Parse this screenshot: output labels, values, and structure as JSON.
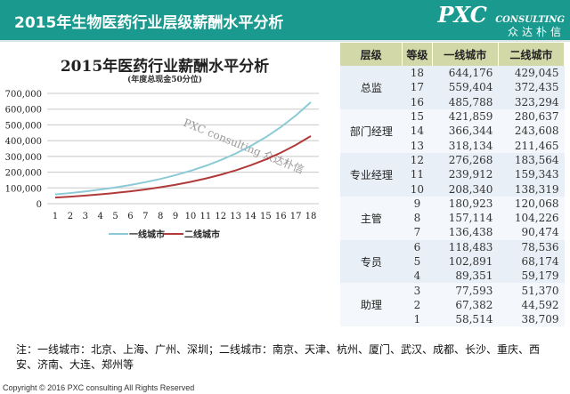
{
  "header": {
    "title": "2015年生物医药行业层级薪酬水平分析",
    "logo_main": "PXC",
    "logo_sub": "CONSULTING",
    "logo_cn": "众达朴信"
  },
  "chart_data": {
    "type": "line",
    "title": "2015年医药行业薪酬水平分析",
    "subtitle": "(年度总现金50分位)",
    "x": [
      1,
      2,
      3,
      4,
      5,
      6,
      7,
      8,
      9,
      10,
      11,
      12,
      13,
      14,
      15,
      16,
      17,
      18
    ],
    "ylim": [
      0,
      700000
    ],
    "yticks": [
      "0",
      "100,000",
      "200,000",
      "300,000",
      "400,000",
      "500,000",
      "600,000",
      "700,000"
    ],
    "grid": true,
    "legend": "bottom",
    "watermark": "PXC consulting 众达朴信",
    "series": [
      {
        "name": "一线城市",
        "color": "#8ccbd6",
        "values": [
          58514,
          67382,
          77593,
          89351,
          102891,
          118483,
          136438,
          157114,
          180923,
          208340,
          239912,
          276268,
          318134,
          366344,
          421859,
          485788,
          559404,
          644176
        ]
      },
      {
        "name": "二线城市",
        "color": "#b03a3a",
        "values": [
          38709,
          44592,
          51370,
          59179,
          68174,
          78536,
          90474,
          104226,
          120068,
          138319,
          159343,
          183564,
          211465,
          243608,
          280637,
          323294,
          372435,
          429045
        ]
      }
    ]
  },
  "table": {
    "headers": [
      "层级",
      "等级",
      "一线城市",
      "二线城市"
    ],
    "groups": [
      {
        "level": "总监",
        "rows": [
          [
            "18",
            "644,176",
            "429,045"
          ],
          [
            "17",
            "559,404",
            "372,435"
          ],
          [
            "16",
            "485,788",
            "323,294"
          ]
        ]
      },
      {
        "level": "部门经理",
        "rows": [
          [
            "15",
            "421,859",
            "280,637"
          ],
          [
            "14",
            "366,344",
            "243,608"
          ],
          [
            "13",
            "318,134",
            "211,465"
          ]
        ]
      },
      {
        "level": "专业经理",
        "rows": [
          [
            "12",
            "276,268",
            "183,564"
          ],
          [
            "11",
            "239,912",
            "159,343"
          ],
          [
            "10",
            "208,340",
            "138,319"
          ]
        ]
      },
      {
        "level": "主管",
        "rows": [
          [
            "9",
            "180,923",
            "120,068"
          ],
          [
            "8",
            "157,114",
            "104,226"
          ],
          [
            "7",
            "136,438",
            "90,474"
          ]
        ]
      },
      {
        "level": "专员",
        "rows": [
          [
            "6",
            "118,483",
            "78,536"
          ],
          [
            "5",
            "102,891",
            "68,174"
          ],
          [
            "4",
            "89,351",
            "59,179"
          ]
        ]
      },
      {
        "level": "助理",
        "rows": [
          [
            "3",
            "77,593",
            "51,370"
          ],
          [
            "2",
            "67,382",
            "44,592"
          ],
          [
            "1",
            "58,514",
            "38,709"
          ]
        ]
      }
    ]
  },
  "note": "注：一线城市：北京、上海、广州、深圳；二线城市：南京、天津、杭州、厦门、武汉、成都、长沙、重庆、西安、济南、大连、郑州等",
  "copyright": "Copyright © 2016  PXC consulting All Rights Reserved"
}
